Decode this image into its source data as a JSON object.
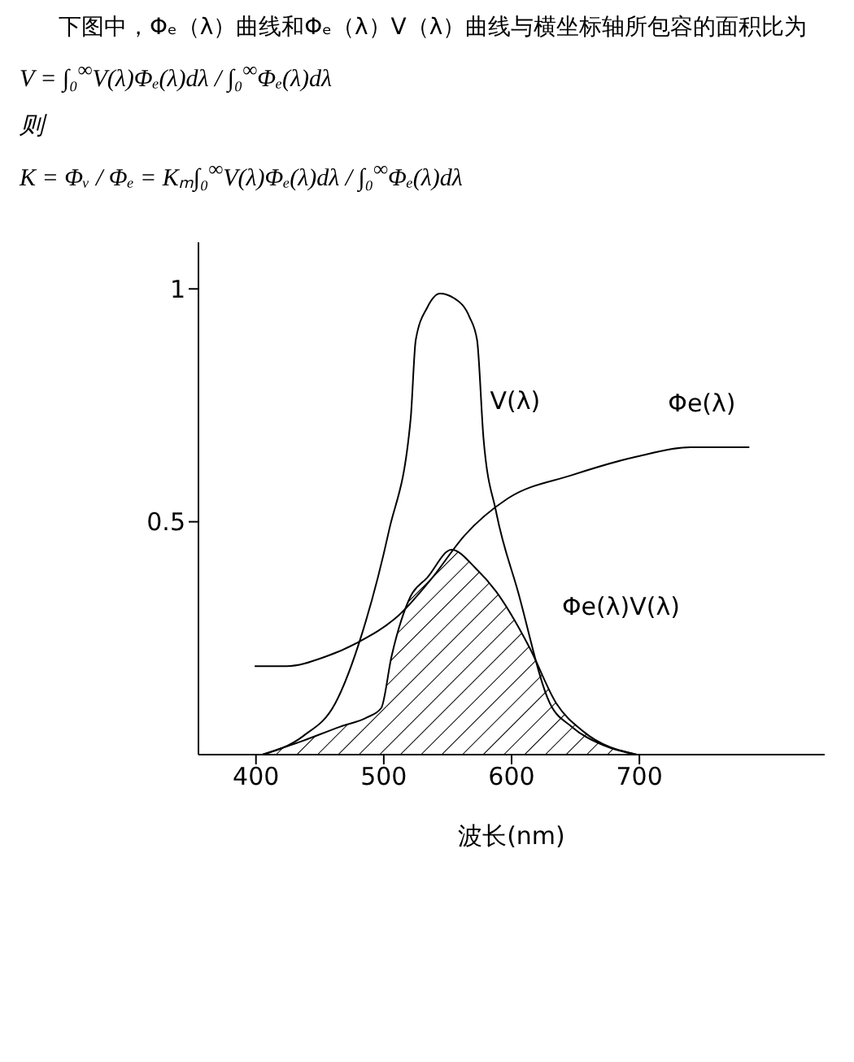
{
  "chart_data": {
    "type": "line",
    "title": "下图中，Φₑ（λ）曲线和Φₑ（λ）V（λ）曲线与横坐标轴所包容的面积比为",
    "annotations": [
      "V = ∫₀$^{∞}$V(λ)Φₑ(λ)dλ / ∫₀$^{∞}$Φₑ(λ)dλ",
      "则",
      "K = Φᵥ / Φₑ = Kₘ∫₀$^{∞}$V(λ)Φₑ(λ)dλ / ∫₀$^{∞}$Φₑ(λ)dλ"
    ],
    "xlabel": "波长(nm)",
    "series": [
      {
        "name": "V(λ)",
        "color": "#000000",
        "x": [
          405,
          437,
          462,
          483,
          504,
          521,
          525,
          534,
          544,
          555,
          567,
          573,
          578,
          588,
          605,
          630,
          647,
          672,
          698
        ],
        "values": [
          0,
          0.04,
          0.11,
          0.26,
          0.48,
          0.72,
          0.89,
          0.96,
          0.99,
          0.98,
          0.94,
          0.89,
          0.68,
          0.52,
          0.35,
          0.11,
          0.06,
          0.02,
          0
        ]
      },
      {
        "name": "Φe(λ)",
        "color": "#000000",
        "x": [
          399,
          424,
          454,
          479,
          512,
          538,
          563,
          597,
          647,
          698,
          740,
          786
        ],
        "values": [
          0.19,
          0.19,
          0.21,
          0.24,
          0.3,
          0.38,
          0.47,
          0.55,
          0.6,
          0.64,
          0.66,
          0.66
        ]
      },
      {
        "name": "Φe(λ)V(λ)",
        "type": "area",
        "color": "#000000",
        "x": [
          405,
          437,
          466,
          487,
          498,
          506,
          521,
          534,
          553,
          572,
          588,
          614,
          635,
          656,
          698
        ],
        "values": [
          0,
          0.03,
          0.06,
          0.08,
          0.1,
          0.21,
          0.34,
          0.38,
          0.44,
          0.4,
          0.35,
          0.23,
          0.11,
          0.05,
          0
        ]
      }
    ],
    "xlim": [
      355,
      845
    ],
    "xticks": [
      400,
      500,
      600,
      700
    ],
    "ylim": [
      0,
      1.1
    ],
    "yticks": [
      0.5,
      1
    ],
    "grid": false,
    "legend": false,
    "marker": "none",
    "line_style": "solid"
  }
}
